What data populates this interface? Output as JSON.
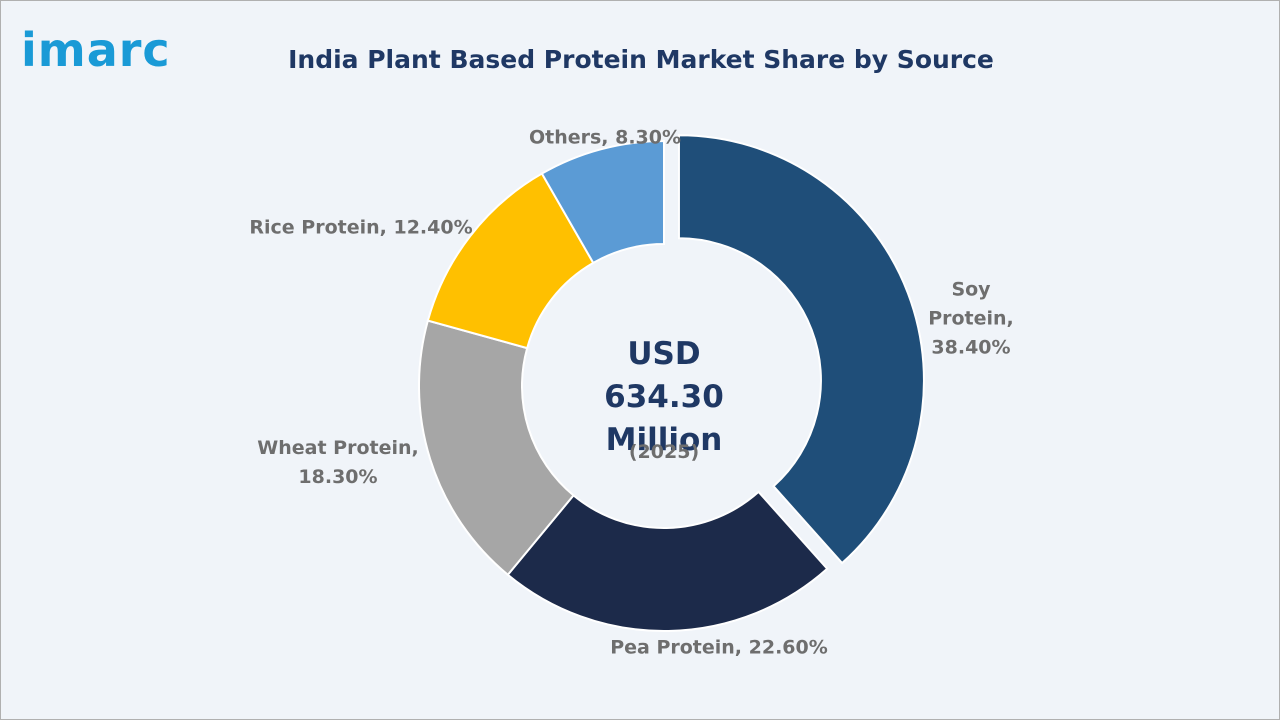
{
  "logo": "imarc",
  "chart_data": {
    "type": "donut",
    "title": "India Plant Based Protein Market Share by Source",
    "categories": [
      "Soy Protein",
      "Pea Protein",
      "Wheat Protein",
      "Rice Protein",
      "Others"
    ],
    "values": [
      38.4,
      22.6,
      18.3,
      12.4,
      8.3
    ],
    "value_labels": [
      "Soy Protein, 38.40%",
      "Pea Protein, 22.60%",
      "Wheat Protein, 18.30%",
      "Rice Protein, 12.40%",
      "Others, 8.30%"
    ],
    "colors": [
      "#1f4e79",
      "#1c2a4a",
      "#a6a6a6",
      "#ffc000",
      "#5b9bd5"
    ],
    "center_label": "USD 634.30 Million",
    "center_sublabel": "(2025)"
  }
}
